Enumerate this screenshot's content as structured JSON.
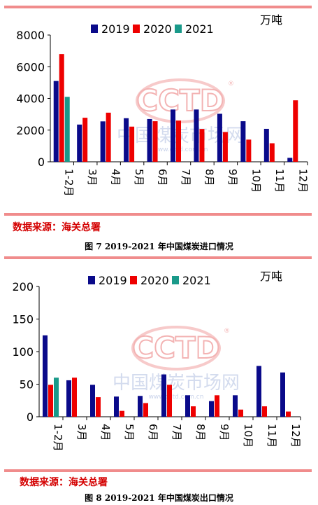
{
  "colors": {
    "2019": "#0a0a8a",
    "2020": "#ee0000",
    "2021": "#1a9a8a",
    "accent": "#f08c8c",
    "source": "#d40000",
    "watermark": "#f3b3b3",
    "watermark_text": "#c9d3ea"
  },
  "watermark": {
    "logo": "CCTD",
    "text": "中国煤炭市场网",
    "url": "www.cctd.com.cn"
  },
  "chart_data": [
    {
      "type": "bar",
      "unit": "万吨",
      "categories": [
        "1-2月",
        "3月",
        "4月",
        "5月",
        "6月",
        "7月",
        "8月",
        "9月",
        "10月",
        "11月",
        "12月"
      ],
      "series": [
        {
          "name": "2019",
          "values": [
            5100,
            2350,
            2550,
            2750,
            2700,
            3300,
            3300,
            3030,
            2560,
            2080,
            250
          ]
        },
        {
          "name": "2020",
          "values": [
            6800,
            2780,
            3100,
            2220,
            2560,
            2600,
            2070,
            1880,
            1400,
            1170,
            3880
          ]
        },
        {
          "name": "2021",
          "values": [
            4100,
            null,
            null,
            null,
            null,
            null,
            null,
            null,
            null,
            null,
            null
          ]
        }
      ],
      "ylim": [
        0,
        8000
      ],
      "yticks": [
        "0",
        "2000",
        "4000",
        "6000",
        "8000"
      ],
      "legend_position": "top",
      "grid": false,
      "source": "数据来源：海关总署",
      "caption": "图 7    2019-2021 年中国煤炭进口情况"
    },
    {
      "type": "bar",
      "unit": "万吨",
      "categories": [
        "1-2月",
        "3月",
        "4月",
        "5月",
        "6月",
        "7月",
        "8月",
        "9月",
        "10月",
        "11月",
        "12月"
      ],
      "series": [
        {
          "name": "2019",
          "values": [
            125,
            56,
            49,
            31,
            32,
            65,
            33,
            24,
            33,
            78,
            68
          ]
        },
        {
          "name": "2020",
          "values": [
            49,
            60,
            30,
            9,
            21,
            49,
            16,
            33,
            11,
            16,
            8
          ]
        },
        {
          "name": "2021",
          "values": [
            60,
            null,
            null,
            null,
            null,
            null,
            null,
            null,
            null,
            null,
            null
          ]
        }
      ],
      "ylim": [
        0,
        200
      ],
      "yticks": [
        "0",
        "50",
        "100",
        "150",
        "200"
      ],
      "legend_position": "top",
      "grid": false,
      "source": "数据来源：海关总署",
      "caption": "图 8    2019-2021 年中国煤炭出口情况"
    }
  ]
}
